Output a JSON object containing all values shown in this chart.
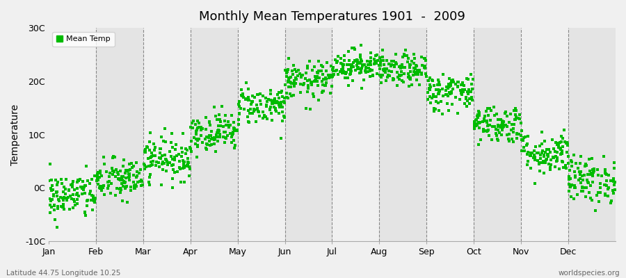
{
  "title": "Monthly Mean Temperatures 1901  -  2009",
  "ylabel": "Temperature",
  "background_color": "#f0f0f0",
  "plot_bg_light": "#f5f5f5",
  "plot_bg_dark": "#e0e0e0",
  "dot_color": "#00bb00",
  "dot_size": 5,
  "ylim": [
    -10,
    30
  ],
  "yticks": [
    -10,
    0,
    10,
    20,
    30
  ],
  "ytick_labels": [
    "-10C",
    "0C",
    "10C",
    "20C",
    "30C"
  ],
  "months": [
    "Jan",
    "Feb",
    "Mar",
    "Apr",
    "May",
    "Jun",
    "Jul",
    "Aug",
    "Sep",
    "Oct",
    "Nov",
    "Dec"
  ],
  "legend_label": "Mean Temp",
  "bottom_left_text": "Latitude 44.75 Longitude 10.25",
  "bottom_right_text": "worldspecies.org",
  "n_years": 109,
  "monthly_means": [
    -1.5,
    1.5,
    5.5,
    10.5,
    15.5,
    20.0,
    23.0,
    22.0,
    18.0,
    12.0,
    6.5,
    1.5
  ],
  "monthly_stds": [
    2.2,
    2.0,
    2.0,
    1.8,
    1.8,
    1.8,
    1.5,
    1.5,
    1.8,
    1.8,
    2.0,
    2.2
  ],
  "random_seed": 42
}
